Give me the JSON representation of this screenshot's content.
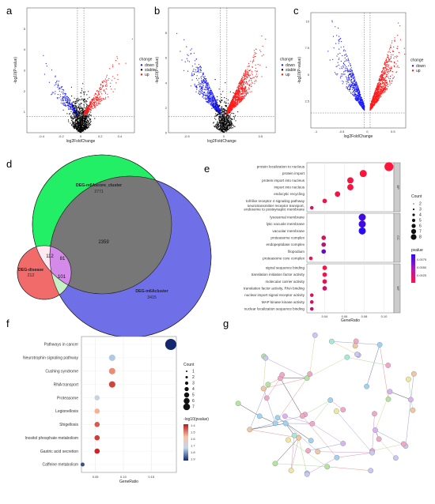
{
  "panels": {
    "a": "a",
    "b": "b",
    "c": "c",
    "d": "d",
    "e": "e",
    "f": "f",
    "g": "g"
  },
  "chart_data": [
    {
      "id": "a",
      "type": "scatter",
      "xlabel": "log2FoldChange",
      "ylabel": "-log10(P-value)",
      "xlim": [
        -0.55,
        0.55
      ],
      "ylim": [
        0,
        6
      ],
      "xticks": [
        -0.4,
        -0.2,
        0.0,
        0.2,
        0.4
      ],
      "yticks": [
        1,
        2,
        3,
        4,
        5
      ],
      "legend_title": "change",
      "legend": [
        "down",
        "stable",
        "up"
      ],
      "colors": {
        "down": "#1a1aff",
        "stable": "#000000",
        "up": "#ff1a1a"
      },
      "counts": {
        "down": 230,
        "stable": 900,
        "up": 330
      }
    },
    {
      "id": "b",
      "type": "scatter",
      "xlabel": "log2FoldChange",
      "ylabel": "-log10(P-value)",
      "xlim": [
        -0.75,
        0.7
      ],
      "ylim": [
        0,
        10
      ],
      "xticks": [
        -0.5,
        0.0,
        0.5
      ],
      "yticks": [
        0,
        2,
        4,
        6,
        8
      ],
      "legend_title": "change",
      "legend": [
        "down",
        "stable",
        "up"
      ],
      "colors": {
        "down": "#1a1aff",
        "stable": "#000000",
        "up": "#ff1a1a"
      },
      "counts": {
        "down": 600,
        "stable": 600,
        "up": 900
      }
    },
    {
      "id": "c",
      "type": "scatter",
      "xlabel": "log2FoldChange",
      "ylabel": "-log10(P-value)",
      "xlim": [
        -1.1,
        0.75
      ],
      "ylim": [
        0,
        10.8
      ],
      "xticks": [
        -1.0,
        -0.5,
        0.0,
        0.5
      ],
      "yticks": [
        2.5,
        5.0,
        7.5,
        10.0
      ],
      "legend_title": "change",
      "legend": [
        "down",
        "up"
      ],
      "colors": {
        "down": "#1a1aff",
        "up": "#ff1a1a"
      },
      "counts": {
        "down": 600,
        "up": 900
      }
    },
    {
      "id": "d",
      "type": "venn",
      "sets": [
        {
          "name": "DEG-m6Ascore_cluster",
          "count": "2771",
          "color": "#22ee66"
        },
        {
          "name": "DEG-m6Acluster",
          "count": "3415",
          "color": "#6f6fe8"
        },
        {
          "name": "DEG-disease",
          "count": "212",
          "color": "#f26b6b"
        }
      ],
      "intersections": [
        {
          "sets": [
            "DEG-m6Ascore_cluster",
            "DEG-m6Acluster"
          ],
          "count": "2359"
        },
        {
          "sets": [
            "DEG-m6Ascore_cluster",
            "DEG-disease"
          ],
          "count": "112"
        },
        {
          "sets": [
            "DEG-m6Ascore_cluster",
            "DEG-m6Acluster",
            "DEG-disease"
          ],
          "count": "81"
        },
        {
          "sets": [
            "DEG-m6Acluster",
            "DEG-disease"
          ],
          "count": "101"
        }
      ]
    },
    {
      "id": "e",
      "type": "dot",
      "xlabel": "GeneRatio",
      "xlim": [
        0.022,
        0.11
      ],
      "xticks": [
        0.04,
        0.06,
        0.08,
        0.1
      ],
      "xtick_labels": [
        "0.04",
        "0.06",
        "0.08",
        "0.10"
      ],
      "size_title": "Count",
      "size_legend": [
        "2",
        "3",
        "4",
        "5",
        "6",
        "7",
        "8"
      ],
      "color_title": "pvalue",
      "color_legend": [
        "0.0075",
        "0.0050",
        "0.0025"
      ],
      "groups": [
        {
          "name": "BP",
          "terms": [
            {
              "term": "protein localization to nucleus",
              "ratio": 0.105,
              "count": 8,
              "p": 0.0004
            },
            {
              "term": "protein import",
              "ratio": 0.079,
              "count": 6,
              "p": 0.0005
            },
            {
              "term": "protein import into nucleus",
              "ratio": 0.066,
              "count": 5,
              "p": 0.0008
            },
            {
              "term": "import into nucleus",
              "ratio": 0.066,
              "count": 5,
              "p": 0.0008
            },
            {
              "term": "endocytic recycling",
              "ratio": 0.053,
              "count": 4,
              "p": 0.001
            },
            {
              "term": "toll-like receptor 4 signaling pathway",
              "ratio": 0.04,
              "count": 3,
              "p": 0.0012
            },
            {
              "term": "neurotransmitter receptor transport, endosome to postsynaptic membrane",
              "ratio": 0.027,
              "count": 2,
              "p": 0.002
            }
          ]
        },
        {
          "name": "CC",
          "terms": [
            {
              "term": "lysosomal membrane",
              "ratio": 0.078,
              "count": 6,
              "p": 0.008
            },
            {
              "term": "lytic vacuole membrane",
              "ratio": 0.078,
              "count": 6,
              "p": 0.008
            },
            {
              "term": "vacuolar membrane",
              "ratio": 0.078,
              "count": 6,
              "p": 0.009
            },
            {
              "term": "proteasome complex",
              "ratio": 0.039,
              "count": 3,
              "p": 0.002
            },
            {
              "term": "endopeptidase complex",
              "ratio": 0.039,
              "count": 3,
              "p": 0.003
            },
            {
              "term": "filopodium",
              "ratio": 0.039,
              "count": 3,
              "p": 0.0065
            },
            {
              "term": "proteasome core complex",
              "ratio": 0.026,
              "count": 2,
              "p": 0.001
            }
          ]
        },
        {
          "name": "MF",
          "terms": [
            {
              "term": "signal sequence binding",
              "ratio": 0.04,
              "count": 3,
              "p": 0.0008
            },
            {
              "term": "translation initiation factor activity",
              "ratio": 0.04,
              "count": 3,
              "p": 0.0012
            },
            {
              "term": "molecular carrier activity",
              "ratio": 0.04,
              "count": 3,
              "p": 0.0015
            },
            {
              "term": "translation factor activity, RNA binding",
              "ratio": 0.04,
              "count": 3,
              "p": 0.0025
            },
            {
              "term": "nuclear import signal receptor activity",
              "ratio": 0.027,
              "count": 2,
              "p": 0.002
            },
            {
              "term": "MAP kinase kinase activity",
              "ratio": 0.027,
              "count": 2,
              "p": 0.0025
            },
            {
              "term": "nuclear localization sequence binding",
              "ratio": 0.027,
              "count": 2,
              "p": 0.003
            }
          ]
        }
      ]
    },
    {
      "id": "f",
      "type": "dot",
      "xlabel": "GeneRatio",
      "xlim": [
        0.025,
        0.195
      ],
      "xticks": [
        0.05,
        0.1,
        0.15
      ],
      "xtick_labels": [
        "0.05",
        "0.10",
        "0.15"
      ],
      "size_title": "Count",
      "size_legend": [
        "1",
        "2",
        "3",
        "4",
        "5",
        "6",
        "7"
      ],
      "color_title": "-log10(pvalue)",
      "color_legend": [
        "1.4",
        "1.5",
        "1.6",
        "1.7",
        "1.8",
        "1.9"
      ],
      "terms": [
        {
          "term": "Pathways in cancer",
          "ratio": 0.185,
          "count": 7,
          "nlp": 1.95
        },
        {
          "term": "Neurotrophin signaling pathway",
          "ratio": 0.08,
          "count": 3,
          "nlp": 1.75
        },
        {
          "term": "Cushing syndrome",
          "ratio": 0.08,
          "count": 3,
          "nlp": 1.45
        },
        {
          "term": "RNA transport",
          "ratio": 0.08,
          "count": 3,
          "nlp": 1.35
        },
        {
          "term": "Proteasome",
          "ratio": 0.053,
          "count": 2,
          "nlp": 1.7
        },
        {
          "term": "Legionellosis",
          "ratio": 0.053,
          "count": 2,
          "nlp": 1.5
        },
        {
          "term": "Shigellosis",
          "ratio": 0.053,
          "count": 2,
          "nlp": 1.38
        },
        {
          "term": "Inositol phosphate metabolism",
          "ratio": 0.053,
          "count": 2,
          "nlp": 1.34
        },
        {
          "term": "Gastric acid secretion",
          "ratio": 0.053,
          "count": 2,
          "nlp": 1.31
        },
        {
          "term": "Caffeine metabolism",
          "ratio": 0.027,
          "count": 1,
          "nlp": 1.9
        }
      ]
    },
    {
      "id": "g",
      "type": "network",
      "node_count": 60
    }
  ]
}
